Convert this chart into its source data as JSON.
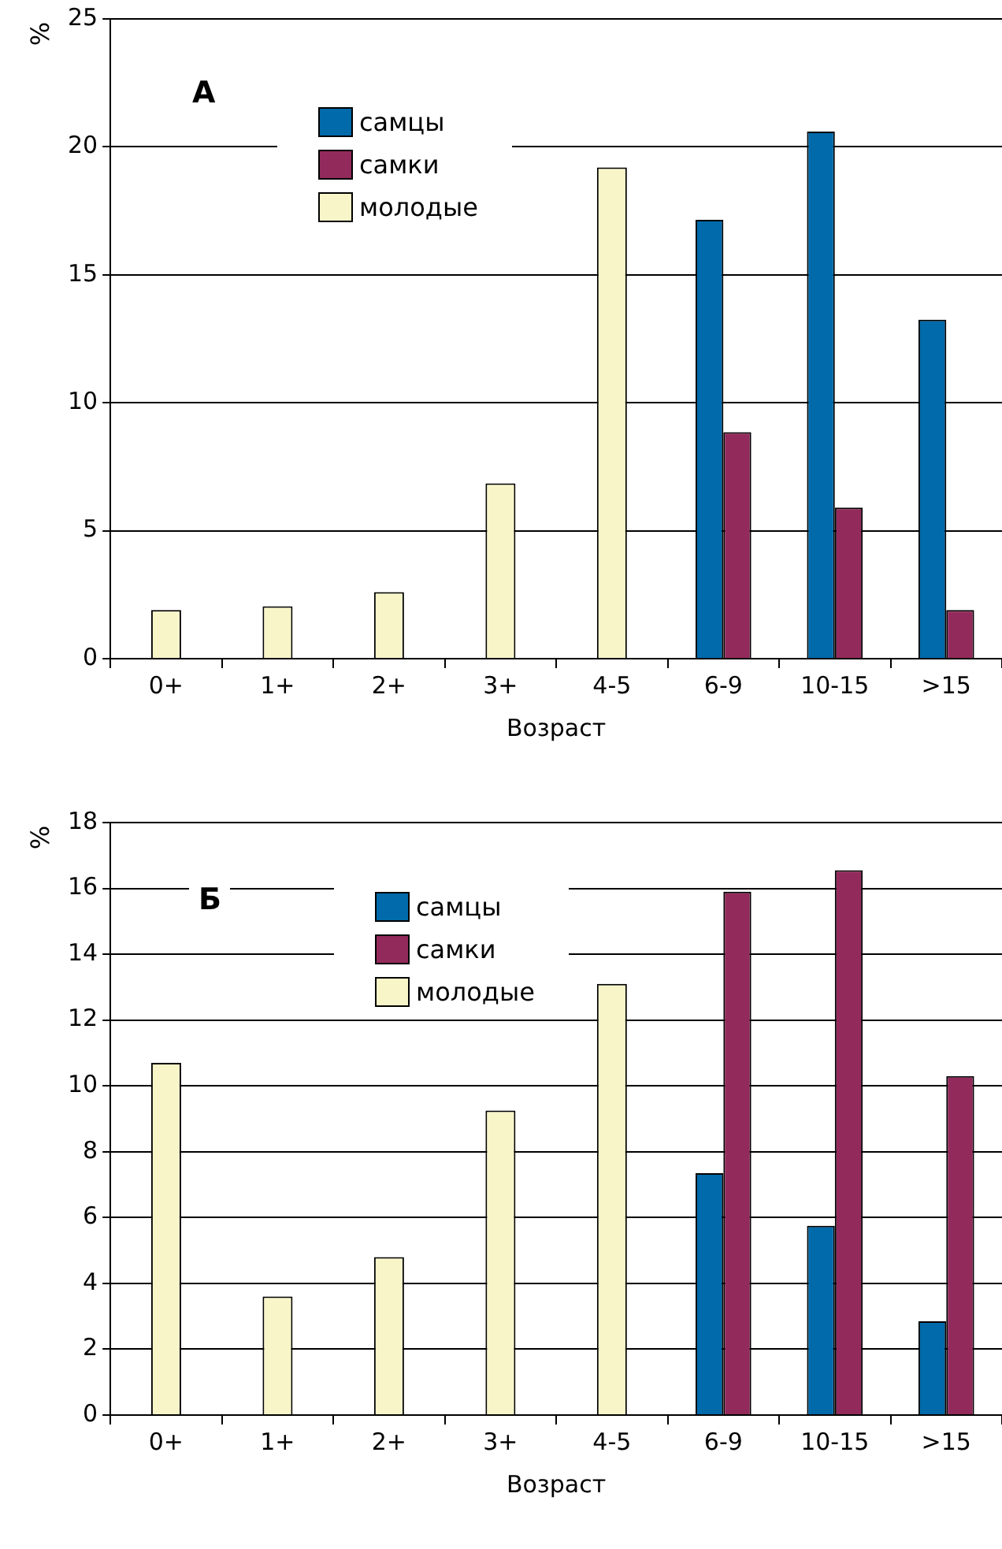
{
  "chart_data": [
    {
      "type": "bar",
      "categories": [
        "0+",
        "1+",
        "2+",
        "3+",
        "4-5",
        "6-9",
        "10-15",
        ">15"
      ],
      "xlabel": "Возраст",
      "ylabel": "%",
      "ylim": [
        0,
        25
      ],
      "yticks": [
        0,
        5,
        10,
        15,
        20,
        25
      ],
      "grid": "y",
      "legend": "top left",
      "annotations": [
        "А"
      ],
      "series": [
        {
          "name": "самцы",
          "color": "#006aaa",
          "values": [
            null,
            null,
            null,
            null,
            null,
            17.15,
            20.6,
            13.25
          ]
        },
        {
          "name": "самки",
          "color": "#932a5c",
          "values": [
            null,
            null,
            null,
            null,
            null,
            8.85,
            5.9,
            1.9
          ]
        },
        {
          "name": "молодые",
          "color": "#f8f5c8",
          "values": [
            1.9,
            2.05,
            2.6,
            6.85,
            19.2,
            null,
            null,
            null
          ]
        }
      ]
    },
    {
      "type": "bar",
      "categories": [
        "0+",
        "1+",
        "2+",
        "3+",
        "4-5",
        "6-9",
        "10-15",
        ">15"
      ],
      "xlabel": "Возраст",
      "ylabel": "%",
      "ylim": [
        0,
        18
      ],
      "yticks": [
        0,
        2,
        4,
        6,
        8,
        10,
        12,
        14,
        16,
        18
      ],
      "grid": "y",
      "legend": "top left",
      "annotations": [
        "Б"
      ],
      "series": [
        {
          "name": "самцы",
          "color": "#006aaa",
          "values": [
            null,
            null,
            null,
            null,
            null,
            7.35,
            5.75,
            2.85
          ]
        },
        {
          "name": "самки",
          "color": "#932a5c",
          "values": [
            null,
            null,
            null,
            null,
            null,
            15.9,
            16.55,
            10.3
          ]
        },
        {
          "name": "молодые",
          "color": "#f8f5c8",
          "values": [
            10.7,
            3.6,
            4.8,
            9.25,
            13.1,
            null,
            null,
            null
          ]
        }
      ]
    }
  ]
}
